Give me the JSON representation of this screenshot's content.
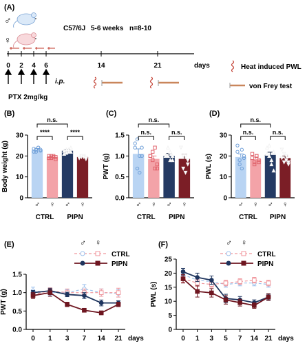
{
  "colors": {
    "male_ctrl": "#b9d4f3",
    "female_ctrl": "#f3a3a8",
    "male_pipn": "#243a63",
    "female_pipn": "#7b1e26",
    "sig_text": "#000000"
  },
  "panelA": {
    "label": "(A)",
    "male_symbol": "♂",
    "female_symbol": "♀",
    "strain": "C57/6J",
    "age": "5-6 weeks",
    "n": "n=8-10",
    "day_ticks": [
      "0",
      "2",
      "4",
      "6",
      "14",
      "21"
    ],
    "days_label": "days",
    "route": "i.p.",
    "drug": "PTX 2mg/kg",
    "legend_heat": "Heat induced PWL",
    "legend_vonfrey": "von Frey test",
    "icons": [
      "mouse-icon",
      "syringe-icon",
      "heat-wave-icon",
      "von-frey-icon"
    ]
  },
  "panelB": {
    "label": "(B)",
    "ylabel": "Body weight (g)",
    "groups": [
      "CTRL",
      "PIPN"
    ],
    "sex_labels": [
      "♂",
      "♀",
      "♂",
      "♀"
    ],
    "sig_top": "n.s.",
    "sig_left": "****",
    "sig_right": "****"
  },
  "panelC": {
    "label": "(C)",
    "ylabel": "PWT (g)",
    "groups": [
      "CTRL",
      "PIPN"
    ],
    "sex_labels": [
      "♂",
      "♀",
      "♂",
      "♀"
    ],
    "sig_top": "n.s.",
    "sig_left": "n.s.",
    "sig_right": "n.s."
  },
  "panelD": {
    "label": "(D)",
    "ylabel": "PWL (s)",
    "groups": [
      "CTRL",
      "PIPN"
    ],
    "sex_labels": [
      "♂",
      "♀",
      "♂",
      "♀"
    ],
    "sig_top": "n.s.",
    "sig_left": "n.s.",
    "sig_right": "n.s."
  },
  "panelE": {
    "label": "(E)",
    "ylabel": "PWT (g)",
    "days_label": "days",
    "legend_ctrl": "CTRL",
    "legend_pipn": "PIPN",
    "male_symbol": "♂",
    "female_symbol": "♀"
  },
  "panelF": {
    "label": "(F)",
    "ylabel": "PWL (s)",
    "days_label": "days",
    "legend_ctrl": "CTRL",
    "legend_pipn": "PIPN",
    "male_symbol": "♂",
    "female_symbol": "♀"
  },
  "chart_data": [
    {
      "type": "bar",
      "panel": "B",
      "ylabel": "Body weight (g)",
      "ylim": [
        0,
        30
      ],
      "yticks": [
        0,
        10,
        20,
        30
      ],
      "categories": [
        "CTRL ♂",
        "CTRL ♀",
        "PIPN ♂",
        "PIPN ♀"
      ],
      "values": [
        23.0,
        19.5,
        22.5,
        19.5
      ],
      "errors": [
        0.6,
        0.5,
        0.6,
        0.4
      ],
      "points": [
        [
          22,
          23,
          24,
          22.5,
          23.5,
          22,
          24,
          23
        ],
        [
          19,
          20,
          19.5,
          18.5,
          20,
          19,
          20,
          19.5
        ],
        [
          21,
          23,
          22,
          24,
          22.5,
          21.5,
          23,
          22
        ],
        [
          19,
          19.5,
          20,
          18.5,
          19,
          20,
          19.5,
          19
        ]
      ]
    },
    {
      "type": "bar",
      "panel": "C",
      "ylabel": "PWT (g)",
      "ylim": [
        0,
        1.5
      ],
      "yticks": [
        0.0,
        0.5,
        1.0,
        1.5
      ],
      "categories": [
        "CTRL ♂",
        "CTRL ♀",
        "PIPN ♂",
        "PIPN ♀"
      ],
      "values": [
        1.05,
        0.93,
        1.0,
        0.93
      ],
      "errors": [
        0.12,
        0.07,
        0.06,
        0.11
      ],
      "points": [
        [
          1.2,
          1.4,
          0.6,
          1.0,
          1.3,
          0.7,
          1.0,
          1.2
        ],
        [
          1.0,
          1.1,
          0.7,
          0.8,
          1.0,
          0.9,
          1.2,
          0.7
        ],
        [
          1.0,
          1.0,
          1.1,
          0.9,
          1.0,
          1.2,
          0.9,
          1.0
        ],
        [
          1.2,
          1.0,
          0.6,
          0.8,
          1.2,
          0.7,
          1.0,
          0.9
        ]
      ]
    },
    {
      "type": "bar",
      "panel": "D",
      "ylabel": "PWL (s)",
      "ylim": [
        0,
        30
      ],
      "yticks": [
        0,
        10,
        20,
        30
      ],
      "categories": [
        "CTRL ♂",
        "CTRL ♀",
        "PIPN ♂",
        "PIPN ♀"
      ],
      "values": [
        19.5,
        18.5,
        20.5,
        19.0
      ],
      "errors": [
        1.5,
        1.0,
        1.3,
        1.0
      ],
      "points": [
        [
          25,
          18,
          14,
          20,
          22,
          16,
          23,
          19
        ],
        [
          21,
          17,
          20,
          18,
          19,
          16,
          20,
          17
        ],
        [
          24,
          20,
          16,
          22,
          21,
          25,
          18,
          13
        ],
        [
          23,
          17,
          20,
          16,
          19,
          21,
          18,
          17
        ]
      ]
    },
    {
      "type": "line",
      "panel": "E",
      "ylabel": "PWT (g)",
      "x": [
        0,
        1,
        3,
        7,
        14,
        21
      ],
      "xlabel": "days",
      "ylim": [
        0.0,
        1.5
      ],
      "yticks": [
        0.0,
        0.5,
        1.0,
        1.5
      ],
      "series": [
        {
          "name": "CTRL ♂",
          "values": [
            1.05,
            1.0,
            1.0,
            1.1,
            1.0,
            0.98
          ],
          "errors": [
            0.1,
            0.08,
            0.08,
            0.12,
            0.1,
            0.1
          ]
        },
        {
          "name": "CTRL ♀",
          "values": [
            0.95,
            1.05,
            1.0,
            1.0,
            1.0,
            1.0
          ],
          "errors": [
            0.08,
            0.08,
            0.1,
            0.1,
            0.1,
            0.12
          ]
        },
        {
          "name": "PIPN ♂",
          "values": [
            1.0,
            1.05,
            0.95,
            0.92,
            0.72,
            0.72
          ],
          "errors": [
            0.06,
            0.07,
            0.06,
            0.08,
            0.08,
            0.06
          ]
        },
        {
          "name": "PIPN ♀",
          "values": [
            0.92,
            1.0,
            0.68,
            0.52,
            0.45,
            0.68
          ],
          "errors": [
            0.08,
            0.1,
            0.06,
            0.05,
            0.05,
            0.06
          ]
        }
      ]
    },
    {
      "type": "line",
      "panel": "F",
      "ylabel": "PWL (s)",
      "x": [
        0,
        1,
        3,
        5,
        7,
        14,
        21
      ],
      "xlabel": "days",
      "ylim": [
        0,
        25
      ],
      "yticks": [
        0,
        5,
        10,
        15,
        20,
        25
      ],
      "series": [
        {
          "name": "CTRL ♂",
          "values": [
            19.5,
            17.5,
            17.0,
            16.0,
            16.5,
            16.5,
            16.0
          ],
          "errors": [
            1.5,
            1.2,
            1.0,
            1.0,
            1.0,
            1.0,
            1.0
          ]
        },
        {
          "name": "CTRL ♀",
          "values": [
            18.0,
            16.5,
            16.0,
            16.5,
            17.0,
            17.5,
            16.5
          ],
          "errors": [
            1.2,
            1.2,
            1.0,
            1.0,
            1.0,
            1.0,
            1.0
          ]
        },
        {
          "name": "PIPN ♂",
          "values": [
            20.5,
            18.5,
            17.5,
            11.0,
            10.5,
            9.5,
            11.5
          ],
          "errors": [
            1.2,
            1.5,
            1.5,
            1.5,
            1.2,
            1.0,
            1.0
          ]
        },
        {
          "name": "PIPN ♀",
          "values": [
            18.0,
            13.5,
            13.0,
            10.5,
            9.5,
            8.5,
            11.5
          ],
          "errors": [
            1.5,
            2.0,
            1.5,
            1.5,
            1.2,
            1.0,
            1.2
          ]
        }
      ]
    }
  ]
}
